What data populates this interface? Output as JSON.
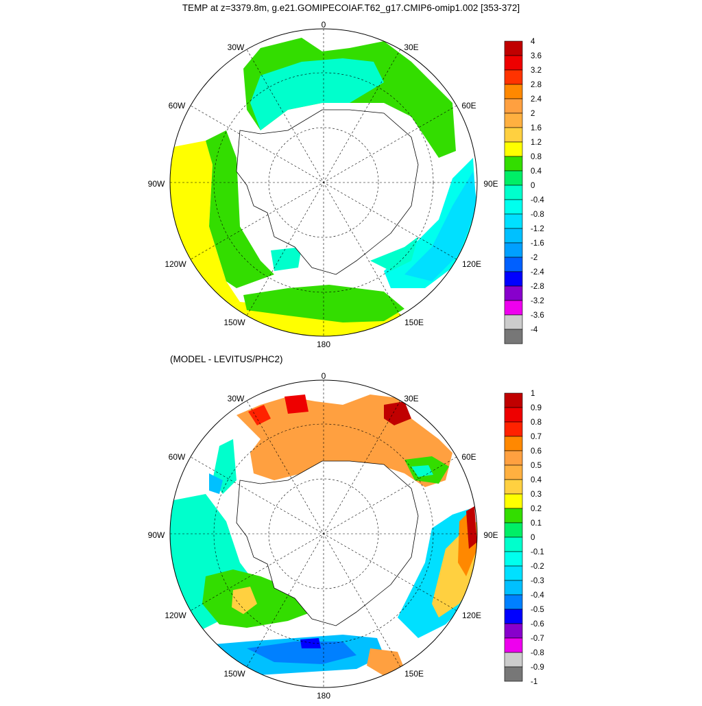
{
  "title": "TEMP at z=3379.8m, g.e21.GOMIPECOIAF.T62_g17.CMIP6-omip1.002 [353-372]",
  "subtitle": "(MODEL - LEVITUS/PHC2)",
  "lon_labels": {
    "l0": "0",
    "l30e": "30E",
    "l60e": "60E",
    "l90e": "90E",
    "l120e": "120E",
    "l150e": "150E",
    "l180": "180",
    "l150w": "150W",
    "l120w": "120W",
    "l90w": "90W",
    "l60w": "60W",
    "l30w": "30W"
  },
  "top_colorbar": {
    "labels": [
      "4",
      "3.6",
      "3.2",
      "2.8",
      "2.4",
      "2",
      "1.6",
      "1.2",
      "0.8",
      "0.4",
      "0",
      "-0.4",
      "-0.8",
      "-1.2",
      "-1.6",
      "-2",
      "-2.4",
      "-2.8",
      "-3.2",
      "-3.6",
      "-4"
    ],
    "colors": [
      "#c00000",
      "#ee0000",
      "#ff3300",
      "#ff8800",
      "#ffa040",
      "#ffb040",
      "#ffd040",
      "#ffff00",
      "#33dd00",
      "#00ee66",
      "#00ffcc",
      "#00ffee",
      "#00e0ff",
      "#00c0ff",
      "#00a0ff",
      "#0060ff",
      "#0000ff",
      "#8800cc",
      "#ee00ee",
      "#cccccc",
      "#777777"
    ]
  },
  "bottom_colorbar": {
    "labels": [
      "1",
      "0.9",
      "0.8",
      "0.7",
      "0.6",
      "0.5",
      "0.4",
      "0.3",
      "0.2",
      "0.1",
      "0",
      "-0.1",
      "-0.2",
      "-0.3",
      "-0.4",
      "-0.5",
      "-0.6",
      "-0.7",
      "-0.8",
      "-0.9",
      "-1"
    ],
    "colors": [
      "#c00000",
      "#ee0000",
      "#ff2200",
      "#ff8800",
      "#ffa040",
      "#ffb040",
      "#ffd040",
      "#ffff00",
      "#33dd00",
      "#00ee66",
      "#00ffcc",
      "#00ffee",
      "#00e0ff",
      "#00c0ff",
      "#0080ff",
      "#0000ff",
      "#8800cc",
      "#ee00ee",
      "#cccccc",
      "#777777"
    ]
  }
}
